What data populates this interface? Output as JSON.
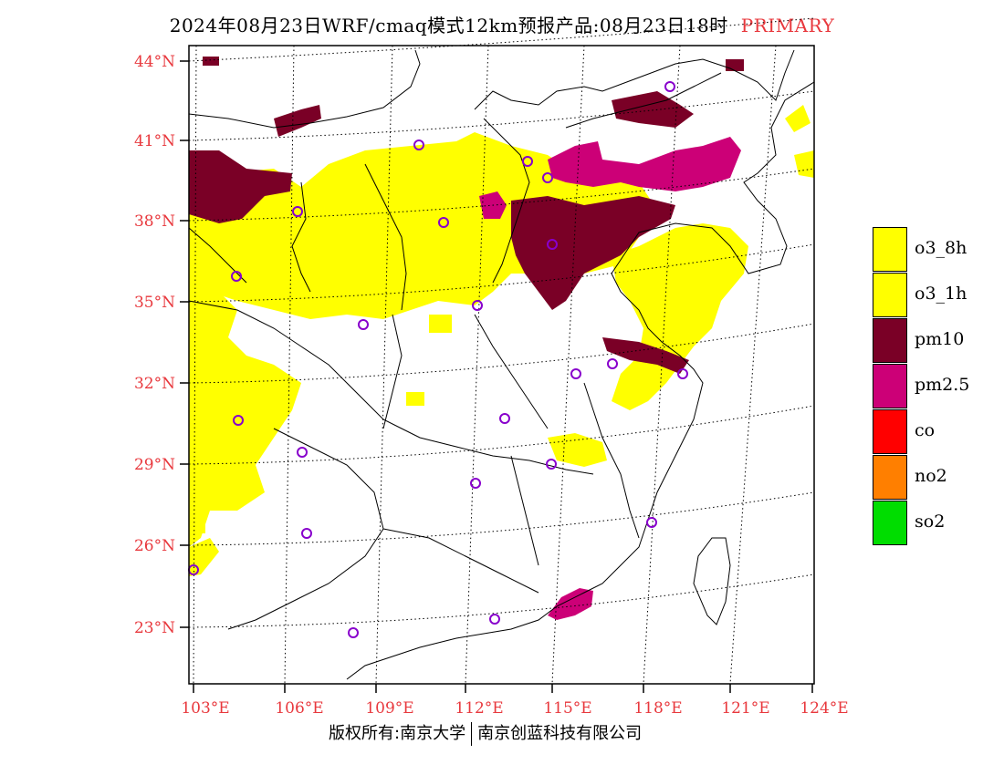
{
  "title": {
    "main": "2024年08月23日WRF/cmaq模式12km预报产品:08月23日18时",
    "tag": "PRIMARY"
  },
  "colors": {
    "axis_label": "#e8383d",
    "o3_8h": "#ffff00",
    "o3_1h": "#ffff00",
    "pm10": "#7a0026",
    "pm2_5": "#cc0077",
    "co": "#ff0000",
    "no2": "#ff7f00",
    "so2": "#00dd00",
    "station_marker": "#8800cc"
  },
  "axes": {
    "lat_labels": [
      "44°N",
      "41°N",
      "38°N",
      "35°N",
      "32°N",
      "29°N",
      "26°N",
      "23°N"
    ],
    "lon_labels": [
      "103°E",
      "106°E",
      "109°E",
      "112°E",
      "115°E",
      "118°E",
      "121°E",
      "124°E"
    ]
  },
  "legend": [
    {
      "label": "o3_8h",
      "color": "#ffff00"
    },
    {
      "label": "o3_1h",
      "color": "#ffff00"
    },
    {
      "label": "pm10",
      "color": "#7a0026"
    },
    {
      "label": "pm2.5",
      "color": "#cc0077"
    },
    {
      "label": "co",
      "color": "#ff0000"
    },
    {
      "label": "no2",
      "color": "#ff7f00"
    },
    {
      "label": "so2",
      "color": "#00dd00"
    }
  ],
  "footer": {
    "left": "版权所有:南京大学",
    "right": "南京创蓝科技有限公司"
  }
}
